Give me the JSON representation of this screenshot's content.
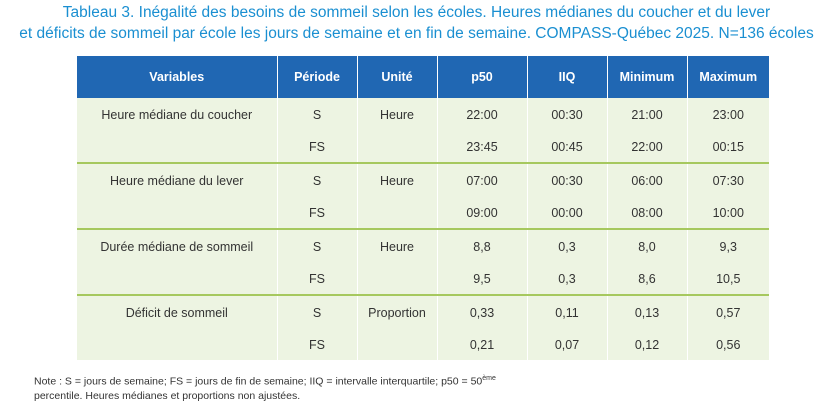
{
  "title": {
    "line1": "Tableau 3. Inégalité des besoins de sommeil selon les écoles. Heures médianes du coucher et du lever",
    "line2": "et déficits de sommeil par école les jours de semaine et en fin de semaine. COMPASS-Québec 2025. N=136 écoles"
  },
  "table": {
    "headers": [
      "Variables",
      "Période",
      "Unité",
      "p50",
      "IIQ",
      "Minimum",
      "Maximum"
    ],
    "rows": [
      [
        "Heure médiane du coucher",
        "S",
        "Heure",
        "22:00",
        "00:30",
        "21:00",
        "23:00"
      ],
      [
        "",
        "FS",
        "",
        "23:45",
        "00:45",
        "22:00",
        "00:15"
      ],
      [
        "Heure médiane du lever",
        "S",
        "Heure",
        "07:00",
        "00:30",
        "06:00",
        "07:30"
      ],
      [
        "",
        "FS",
        "",
        "09:00",
        "00:00",
        "08:00",
        "10:00"
      ],
      [
        "Durée médiane de sommeil",
        "S",
        "Heure",
        "8,8",
        "0,3",
        "8,0",
        "9,3"
      ],
      [
        "",
        "FS",
        "",
        "9,5",
        "0,3",
        "8,6",
        "10,5"
      ],
      [
        "Déficit de sommeil",
        "S",
        "Proportion",
        "0,33",
        "0,11",
        "0,13",
        "0,57"
      ],
      [
        "",
        "FS",
        "",
        "0,21",
        "0,07",
        "0,12",
        "0,56"
      ]
    ]
  },
  "note": {
    "line1_prefix": "Note : S = jours de semaine; FS = jours de fin de semaine; IIQ = intervalle interquartile; p50 = 50",
    "sup": "ème",
    "line2": "percentile. Heures médianes et proportions non ajustées."
  },
  "colors": {
    "title": "#1a8fd1",
    "header_bg": "#2067b3",
    "body_bg": "#edf4e2",
    "separator": "#a6c85e"
  }
}
